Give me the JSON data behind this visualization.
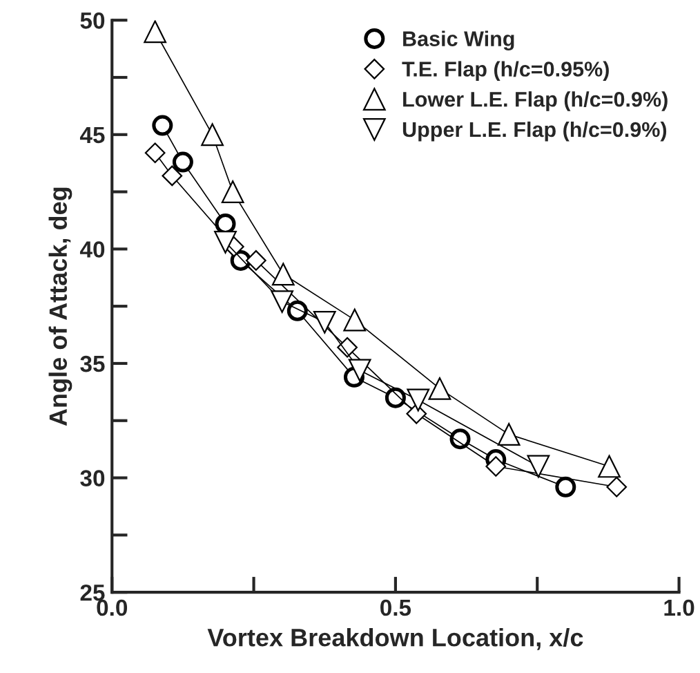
{
  "chart_data": {
    "type": "line",
    "xlabel": "Vortex Breakdown Location, x/c",
    "ylabel": "Angle of Attack, deg",
    "xlim": [
      0.0,
      1.0
    ],
    "ylim": [
      25,
      50
    ],
    "xticks": [
      {
        "value": 0.0,
        "label": "0.0"
      },
      {
        "value": 0.25,
        "label": null
      },
      {
        "value": 0.5,
        "label": "0.5"
      },
      {
        "value": 0.75,
        "label": null
      },
      {
        "value": 1.0,
        "label": "1.0"
      }
    ],
    "yticks": [
      25,
      {
        "value": 27.5,
        "label": null
      },
      30,
      {
        "value": 32.5,
        "label": null
      },
      35,
      {
        "value": 37.5,
        "label": null
      },
      40,
      {
        "value": 42.5,
        "label": null
      },
      45,
      {
        "value": 47.5,
        "label": null
      },
      50
    ],
    "grid": false,
    "legend": "top right",
    "line_style": "solid",
    "series": [
      {
        "name": "Basic Wing",
        "color": "#000000",
        "marker": "circle",
        "x": [
          0.089,
          0.125,
          0.2,
          0.227,
          0.327,
          0.427,
          0.5,
          0.614,
          0.677,
          0.8
        ],
        "values": [
          45.4,
          43.8,
          41.1,
          39.5,
          37.3,
          34.4,
          33.5,
          31.7,
          30.8,
          29.6
        ]
      },
      {
        "name": "T.E. Flap (h/c=0.95%)",
        "color": "#000000",
        "marker": "diamond",
        "x": [
          0.076,
          0.106,
          0.215,
          0.254,
          0.415,
          0.537,
          0.677,
          0.89
        ],
        "values": [
          44.2,
          43.2,
          40.1,
          39.5,
          35.7,
          32.8,
          30.5,
          29.6
        ]
      },
      {
        "name": "Lower L.E. Flap (h/c=0.9%)",
        "color": "#000000",
        "marker": "triangle",
        "x": [
          0.076,
          0.177,
          0.213,
          0.302,
          0.428,
          0.578,
          0.7,
          0.877
        ],
        "values": [
          49.5,
          45.0,
          42.5,
          38.9,
          36.9,
          33.9,
          31.9,
          30.5
        ]
      },
      {
        "name": "Upper L.E. Flap (h/c=0.9%)",
        "color": "#000000",
        "marker": "triangle_down",
        "x": [
          0.2,
          0.3,
          0.375,
          0.437,
          0.54,
          0.752
        ],
        "values": [
          40.3,
          37.7,
          36.8,
          34.7,
          33.4,
          30.5
        ]
      }
    ]
  }
}
